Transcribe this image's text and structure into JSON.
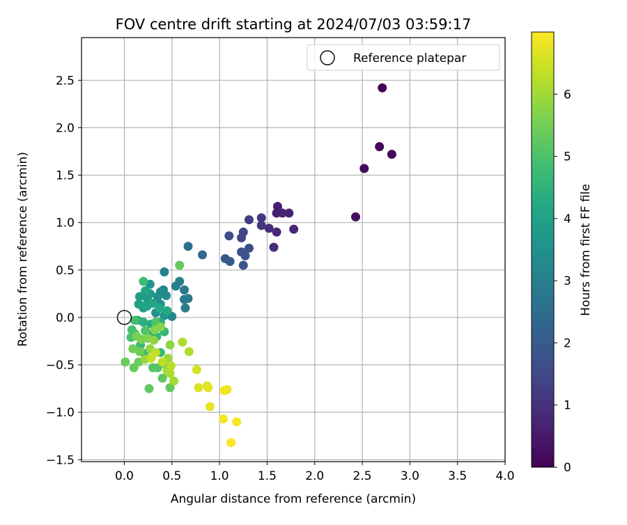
{
  "chart_data": {
    "type": "scatter",
    "title": "FOV centre drift starting at 2024/07/03 03:59:17",
    "xlabel": "Angular distance from reference (arcmin)",
    "ylabel": "Rotation from reference (arcmin)",
    "xlim": [
      -0.45,
      4.0
    ],
    "ylim": [
      -1.52,
      2.95
    ],
    "xticks": [
      0.0,
      0.5,
      1.0,
      1.5,
      2.0,
      2.5,
      3.0,
      3.5,
      4.0
    ],
    "yticks": [
      -1.5,
      -1.0,
      -0.5,
      0.0,
      0.5,
      1.0,
      1.5,
      2.0,
      2.5
    ],
    "xtick_labels": [
      "0.0",
      "0.5",
      "1.0",
      "1.5",
      "2.0",
      "2.5",
      "3.0",
      "3.5",
      "4.0"
    ],
    "ytick_labels": [
      "−1.5",
      "−1.0",
      "−0.5",
      "0.0",
      "0.5",
      "1.0",
      "1.5",
      "2.0",
      "2.5"
    ],
    "grid": true,
    "legend": {
      "position": "top-right",
      "label": "Reference platepar"
    },
    "reference_point": {
      "x": 0.0,
      "y": 0.0
    },
    "colorbar": {
      "label": "Hours from first FF file",
      "range": [
        0,
        7
      ],
      "ticks": [
        0,
        1,
        2,
        3,
        4,
        5,
        6
      ],
      "tick_labels": [
        "0",
        "1",
        "2",
        "3",
        "4",
        "5",
        "6"
      ],
      "colormap": "viridis"
    },
    "points": [
      [
        2.71,
        2.42,
        0.05
      ],
      [
        2.68,
        1.8,
        0.1
      ],
      [
        2.81,
        1.72,
        0.15
      ],
      [
        2.52,
        1.57,
        0.2
      ],
      [
        2.43,
        1.06,
        0.25
      ],
      [
        1.61,
        1.17,
        0.55
      ],
      [
        1.6,
        1.1,
        0.6
      ],
      [
        1.66,
        1.1,
        0.65
      ],
      [
        1.73,
        1.1,
        0.7
      ],
      [
        1.78,
        0.93,
        0.75
      ],
      [
        1.6,
        0.9,
        0.8
      ],
      [
        1.57,
        0.74,
        0.85
      ],
      [
        1.52,
        0.94,
        0.95
      ],
      [
        1.44,
        1.05,
        1.05
      ],
      [
        1.44,
        0.97,
        1.1
      ],
      [
        1.31,
        1.03,
        1.25
      ],
      [
        1.25,
        0.9,
        1.4
      ],
      [
        1.23,
        0.84,
        1.5
      ],
      [
        1.1,
        0.86,
        1.6
      ],
      [
        1.31,
        0.73,
        1.65
      ],
      [
        1.23,
        0.69,
        1.75
      ],
      [
        1.27,
        0.65,
        1.8
      ],
      [
        1.25,
        0.55,
        1.9
      ],
      [
        1.06,
        0.62,
        1.95
      ],
      [
        1.11,
        0.59,
        2.0
      ],
      [
        0.82,
        0.66,
        2.4
      ],
      [
        0.67,
        0.75,
        2.6
      ],
      [
        0.63,
        0.29,
        2.75
      ],
      [
        0.67,
        0.2,
        2.8
      ],
      [
        0.63,
        0.19,
        2.85
      ],
      [
        0.64,
        0.1,
        2.9
      ],
      [
        0.58,
        0.38,
        3.0
      ],
      [
        0.54,
        0.33,
        3.05
      ],
      [
        0.42,
        0.48,
        3.1
      ],
      [
        0.5,
        0.01,
        3.15
      ],
      [
        0.41,
        0.29,
        3.25
      ],
      [
        0.38,
        0.27,
        3.3
      ],
      [
        0.44,
        0.23,
        3.4
      ],
      [
        0.35,
        0.22,
        3.45
      ],
      [
        0.38,
        0.14,
        3.5
      ],
      [
        0.33,
        0.05,
        3.55
      ],
      [
        0.42,
        0.02,
        3.6
      ],
      [
        0.27,
        0.35,
        3.65
      ],
      [
        0.22,
        0.22,
        3.7
      ],
      [
        0.27,
        0.25,
        3.75
      ],
      [
        0.25,
        0.17,
        3.8
      ],
      [
        0.2,
        0.1,
        3.85
      ],
      [
        0.16,
        0.22,
        3.9
      ],
      [
        0.15,
        0.14,
        3.95
      ],
      [
        0.19,
        0.12,
        4.0
      ],
      [
        0.24,
        0.12,
        4.05
      ],
      [
        0.22,
        0.28,
        4.1
      ],
      [
        0.3,
        0.15,
        4.15
      ],
      [
        0.37,
        0.1,
        4.2
      ],
      [
        0.45,
        0.07,
        4.25
      ],
      [
        0.38,
        -0.05,
        4.3
      ],
      [
        0.28,
        -0.07,
        4.35
      ],
      [
        0.2,
        -0.05,
        4.4
      ],
      [
        0.14,
        -0.03,
        4.45
      ],
      [
        0.27,
        -0.18,
        4.5
      ],
      [
        0.34,
        -0.2,
        4.55
      ],
      [
        0.42,
        -0.15,
        4.6
      ],
      [
        0.38,
        -0.37,
        4.65
      ],
      [
        0.17,
        -0.29,
        4.7
      ],
      [
        0.21,
        -0.38,
        4.75
      ],
      [
        0.2,
        0.38,
        4.8
      ],
      [
        0.11,
        -0.03,
        4.85
      ],
      [
        0.08,
        -0.13,
        4.9
      ],
      [
        0.07,
        -0.21,
        4.95
      ],
      [
        0.11,
        -0.17,
        5.0
      ],
      [
        0.22,
        -0.14,
        5.05
      ],
      [
        0.33,
        -0.05,
        5.05
      ],
      [
        0.35,
        -0.53,
        5.1
      ],
      [
        0.3,
        -0.53,
        5.15
      ],
      [
        0.44,
        -0.5,
        5.2
      ],
      [
        0.4,
        -0.64,
        5.25
      ],
      [
        0.26,
        -0.75,
        5.25
      ],
      [
        0.48,
        -0.74,
        5.3
      ],
      [
        0.58,
        0.55,
        5.3
      ],
      [
        0.1,
        -0.53,
        5.35
      ],
      [
        0.01,
        -0.47,
        5.4
      ],
      [
        0.15,
        -0.47,
        5.45
      ],
      [
        0.09,
        -0.33,
        5.45
      ],
      [
        0.16,
        -0.36,
        5.5
      ],
      [
        0.13,
        -0.2,
        5.55
      ],
      [
        0.18,
        -0.23,
        5.6
      ],
      [
        0.25,
        -0.22,
        5.65
      ],
      [
        0.32,
        -0.13,
        5.7
      ],
      [
        0.38,
        -0.1,
        5.75
      ],
      [
        0.48,
        -0.29,
        5.8
      ],
      [
        0.31,
        -0.24,
        5.8
      ],
      [
        0.27,
        -0.33,
        5.85
      ],
      [
        0.22,
        -0.44,
        5.9
      ],
      [
        0.46,
        -0.43,
        5.95
      ],
      [
        0.52,
        -0.67,
        6.0
      ],
      [
        0.45,
        -0.56,
        6.05
      ],
      [
        0.48,
        -0.59,
        6.1
      ],
      [
        0.61,
        -0.26,
        6.15
      ],
      [
        0.68,
        -0.36,
        6.2
      ],
      [
        0.49,
        -0.51,
        6.25
      ],
      [
        0.4,
        -0.47,
        6.3
      ],
      [
        0.33,
        -0.37,
        6.35
      ],
      [
        0.28,
        -0.43,
        6.4
      ],
      [
        0.76,
        -0.55,
        6.55
      ],
      [
        0.78,
        -0.74,
        6.6
      ],
      [
        0.87,
        -0.72,
        6.65
      ],
      [
        0.88,
        -0.74,
        6.7
      ],
      [
        0.9,
        -0.94,
        6.75
      ],
      [
        1.05,
        -0.77,
        6.8
      ],
      [
        1.08,
        -0.76,
        6.85
      ],
      [
        1.04,
        -1.07,
        6.9
      ],
      [
        1.18,
        -1.1,
        6.95
      ],
      [
        1.12,
        -1.32,
        7.0
      ]
    ]
  }
}
